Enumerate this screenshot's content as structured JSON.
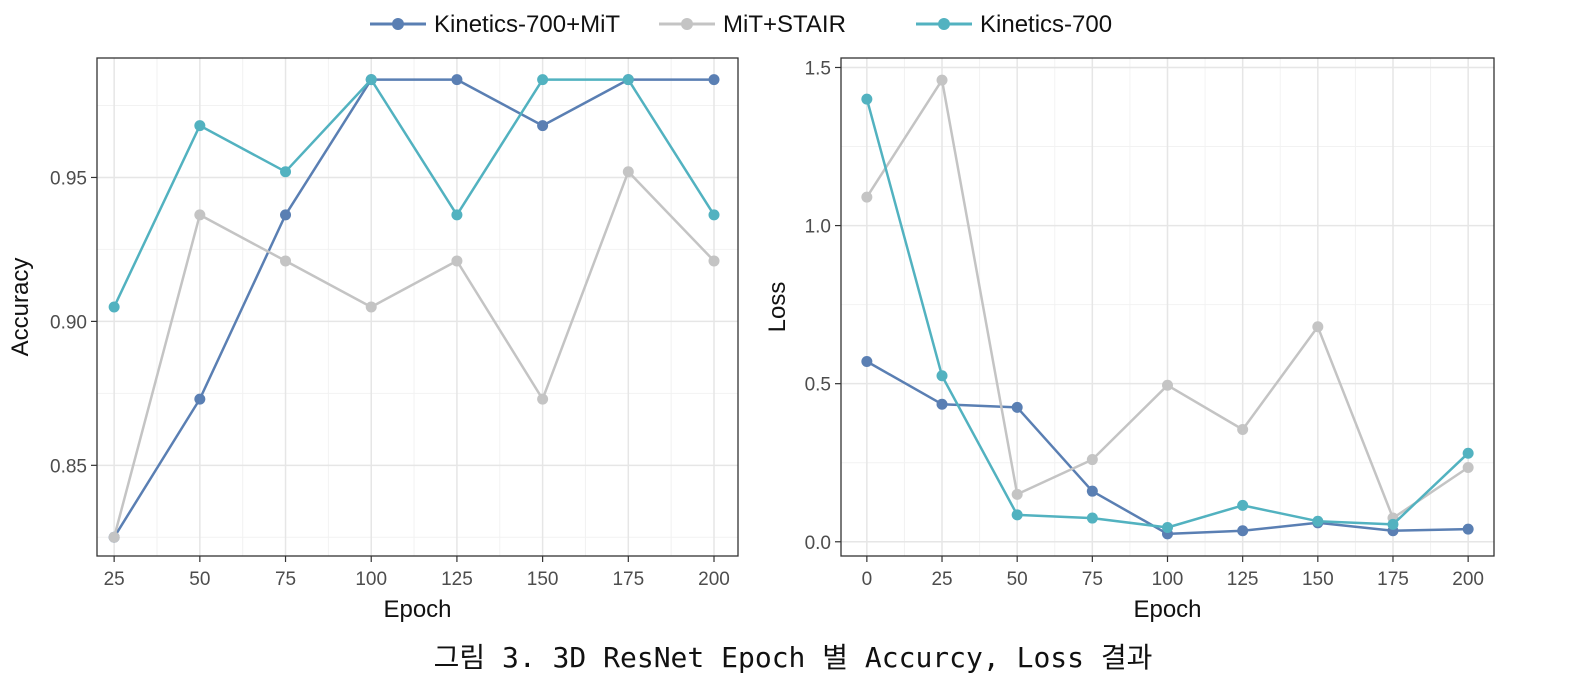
{
  "legend": [
    {
      "name": "Kinetics-700+MiT",
      "color": "#5a7fb3"
    },
    {
      "name": "MiT+STAIR",
      "color": "#c4c4c4"
    },
    {
      "name": "Kinetics-700",
      "color": "#52b2c0"
    }
  ],
  "caption": "그림 3. 3D ResNet Epoch 별 Accurcy, Loss 결과",
  "chart_data": [
    {
      "type": "line",
      "xlabel": "Epoch",
      "ylabel": "Accuracy",
      "x": [
        25,
        50,
        75,
        100,
        125,
        150,
        175,
        200
      ],
      "xticks": [
        25,
        50,
        75,
        100,
        125,
        150,
        175,
        200
      ],
      "yticks": [
        0.85,
        0.9,
        0.95
      ],
      "ytick_labels": [
        "0.85",
        "0.90",
        "0.95"
      ],
      "xlim": [
        20,
        207
      ],
      "ylim": [
        0.8185,
        0.9915
      ],
      "grid": true,
      "series": [
        {
          "name": "Kinetics-700+MiT",
          "color": "#5a7fb3",
          "values": [
            0.825,
            0.873,
            0.937,
            0.984,
            0.984,
            0.968,
            0.984,
            0.984
          ]
        },
        {
          "name": "MiT+STAIR",
          "color": "#c4c4c4",
          "values": [
            0.825,
            0.937,
            0.921,
            0.905,
            0.921,
            0.873,
            0.952,
            0.921
          ]
        },
        {
          "name": "Kinetics-700",
          "color": "#52b2c0",
          "values": [
            0.905,
            0.968,
            0.952,
            0.984,
            0.937,
            0.984,
            0.984,
            0.937
          ]
        }
      ]
    },
    {
      "type": "line",
      "xlabel": "Epoch",
      "ylabel": "Loss",
      "x": [
        0,
        25,
        50,
        75,
        100,
        125,
        150,
        175,
        200
      ],
      "xticks": [
        0,
        25,
        50,
        75,
        100,
        125,
        150,
        175,
        200
      ],
      "yticks": [
        0.0,
        0.5,
        1.0,
        1.5
      ],
      "ytick_labels": [
        "0.0",
        "0.5",
        "1.0",
        "1.5"
      ],
      "xlim": [
        -8.6,
        208.6
      ],
      "ylim": [
        -0.045,
        1.53
      ],
      "grid": true,
      "series": [
        {
          "name": "Kinetics-700+MiT",
          "color": "#5a7fb3",
          "values": [
            0.57,
            0.435,
            0.425,
            0.16,
            0.025,
            0.035,
            0.06,
            0.035,
            0.04
          ]
        },
        {
          "name": "MiT+STAIR",
          "color": "#c4c4c4",
          "values": [
            1.09,
            1.46,
            0.15,
            0.26,
            0.495,
            0.355,
            0.68,
            0.075,
            0.235
          ]
        },
        {
          "name": "Kinetics-700",
          "color": "#52b2c0",
          "values": [
            1.4,
            0.525,
            0.085,
            0.075,
            0.045,
            0.115,
            0.065,
            0.055,
            0.28
          ]
        }
      ]
    }
  ]
}
